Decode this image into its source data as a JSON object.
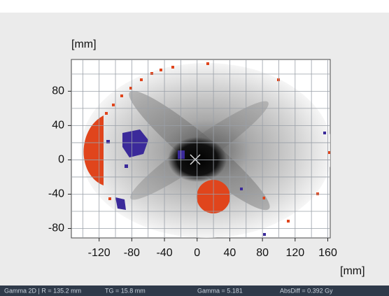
{
  "chart_data": {
    "type": "image",
    "y_label": "[mm]",
    "x_label": "[mm]",
    "xlim": [
      -154,
      163
    ],
    "ylim": [
      -91,
      117
    ],
    "xticks": [
      -120,
      -80,
      -40,
      0,
      40,
      80,
      120,
      160
    ],
    "yticks": [
      -80,
      -40,
      0,
      40,
      80
    ],
    "xgrid": [
      -140,
      -120,
      -100,
      -80,
      -60,
      -40,
      -20,
      0,
      20,
      40,
      60,
      80,
      100,
      120,
      140,
      160
    ],
    "ygrid": [
      -80,
      -60,
      -40,
      -20,
      0,
      20,
      40,
      60,
      80,
      100
    ],
    "grid": true
  },
  "status_bar": [
    "Gamma 2D | R = 135.2 mm",
    "TG = 15.8 mm",
    "Gamma = 5.181",
    "AbsDiff = 0.392 Gy"
  ]
}
